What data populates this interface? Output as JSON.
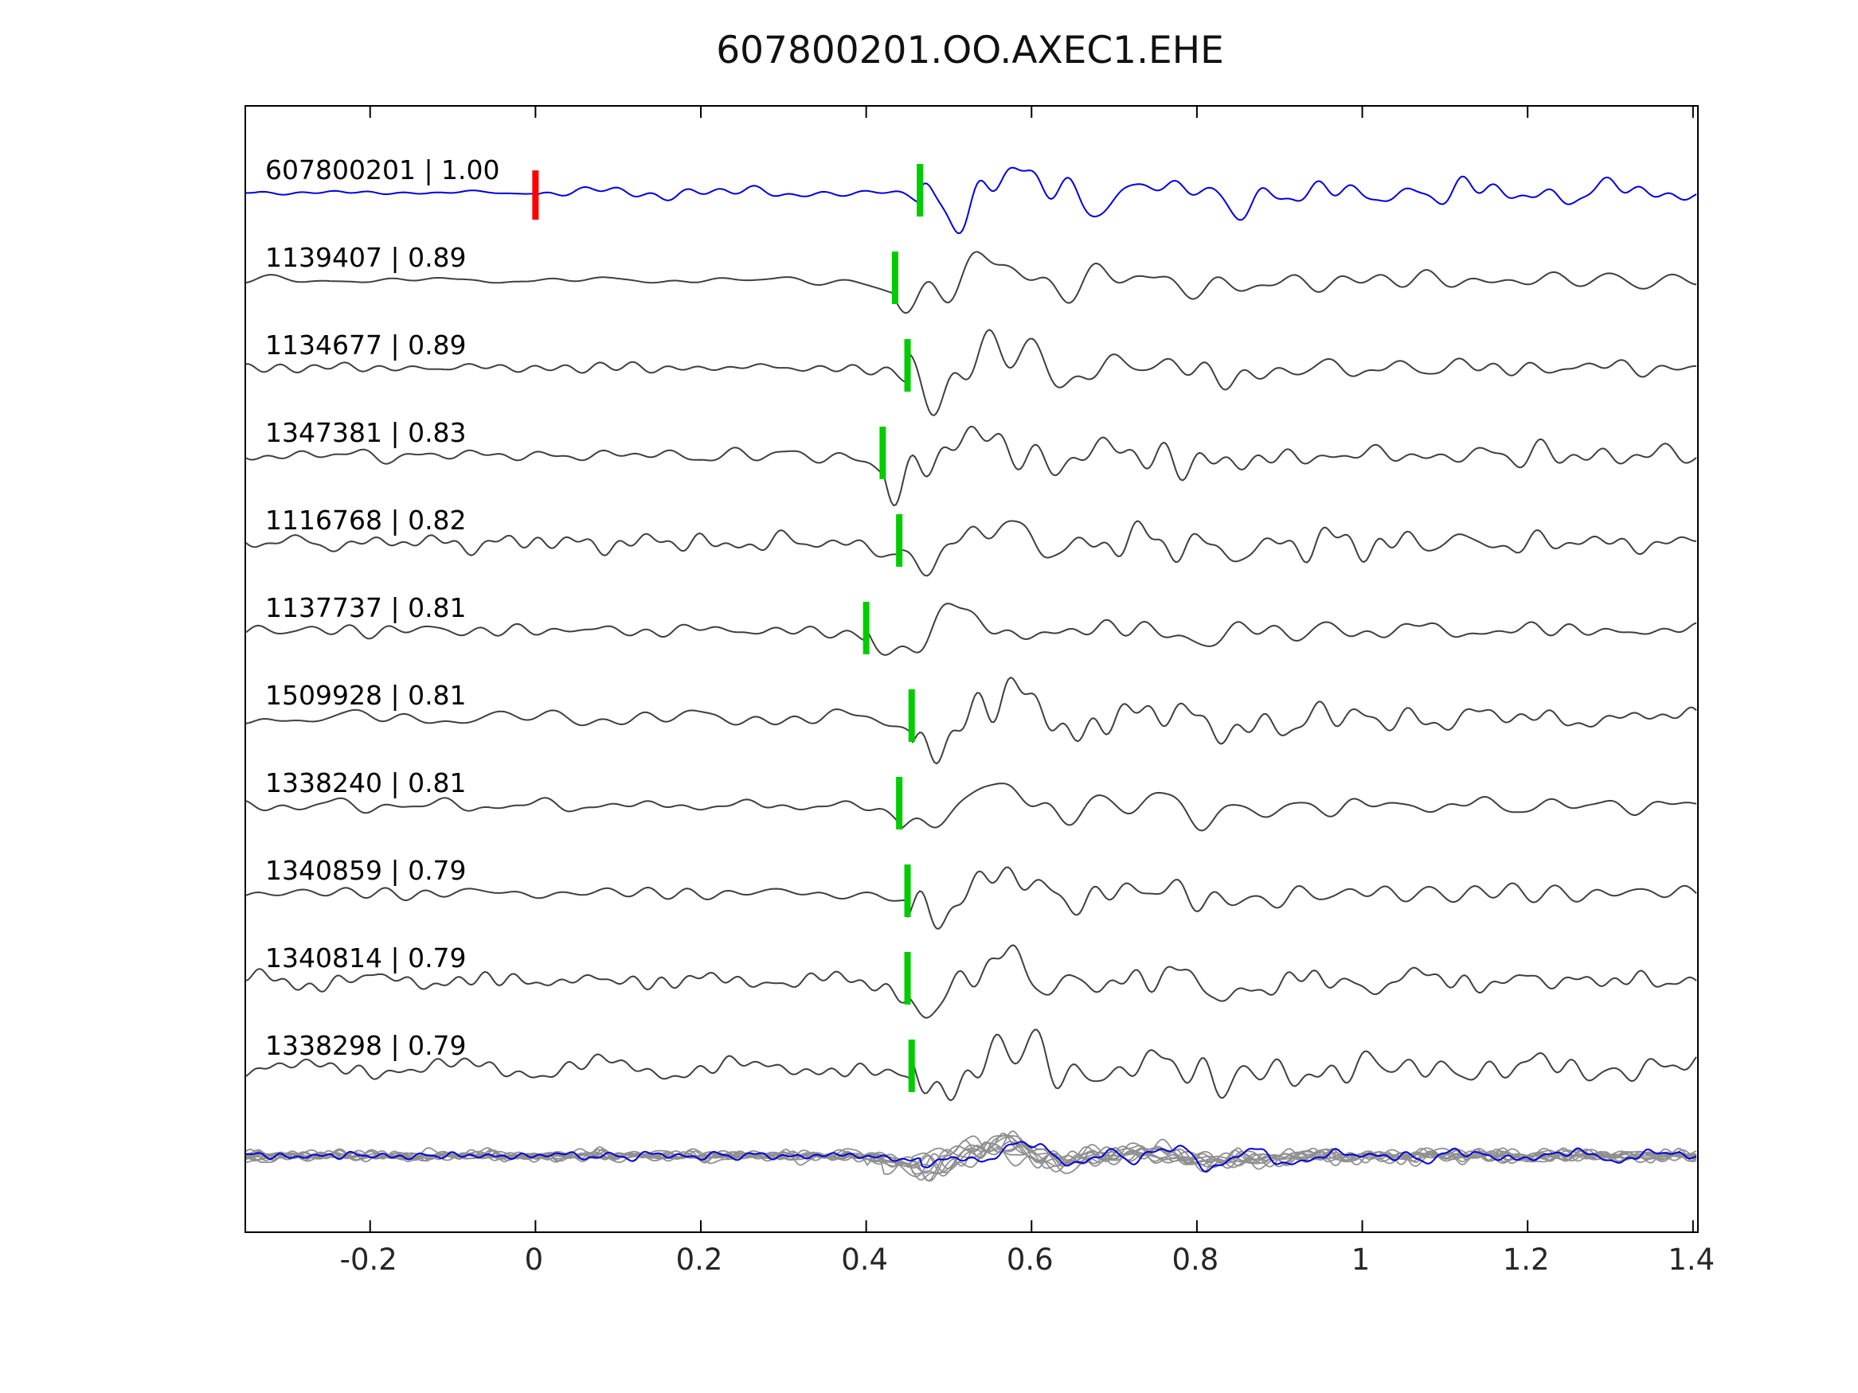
{
  "chart_data": {
    "type": "line",
    "title": "607800201.OO.AXEC1.EHE",
    "xlabel": "",
    "ylabel": "",
    "xlim": [
      -0.35,
      1.405
    ],
    "grid": false,
    "legend": "none",
    "xticks": [
      -0.2,
      0,
      0.2,
      0.4,
      0.6,
      0.8,
      1,
      1.2,
      1.4
    ],
    "xtick_labels": [
      "-0.2",
      "0",
      "0.2",
      "0.4",
      "0.6",
      "0.8",
      "1",
      "1.2",
      "1.4"
    ],
    "colors": {
      "template_trace": "#0000dd",
      "match_trace": "#3f3f3f",
      "overlay_trace": "#909090",
      "pick_marker": "#00cc00",
      "reference_marker": "#ff0000"
    },
    "traces": [
      {
        "label": "607800201 | 1.00",
        "id": "607800201",
        "correlation": 1.0,
        "pick_time": 0.465,
        "reference_time": 0.0,
        "is_template": true
      },
      {
        "label": "1139407 | 0.89",
        "id": "1139407",
        "correlation": 0.89,
        "pick_time": 0.435
      },
      {
        "label": "1134677 | 0.89",
        "id": "1134677",
        "correlation": 0.89,
        "pick_time": 0.45
      },
      {
        "label": "1347381 | 0.83",
        "id": "1347381",
        "correlation": 0.83,
        "pick_time": 0.42
      },
      {
        "label": "1116768 | 0.82",
        "id": "1116768",
        "correlation": 0.82,
        "pick_time": 0.44
      },
      {
        "label": "1137737 | 0.81",
        "id": "1137737",
        "correlation": 0.81,
        "pick_time": 0.4
      },
      {
        "label": "1509928 | 0.81",
        "id": "1509928",
        "correlation": 0.81,
        "pick_time": 0.455
      },
      {
        "label": "1338240 | 0.81",
        "id": "1338240",
        "correlation": 0.81,
        "pick_time": 0.44
      },
      {
        "label": "1340859 | 0.79",
        "id": "1340859",
        "correlation": 0.79,
        "pick_time": 0.45
      },
      {
        "label": "1340814 | 0.79",
        "id": "1340814",
        "correlation": 0.79,
        "pick_time": 0.45
      },
      {
        "label": "1338298 | 0.79",
        "id": "1338298",
        "correlation": 0.79,
        "pick_time": 0.455
      }
    ],
    "bottom_overlay": {
      "description": "all matched traces overlaid with template",
      "trace_count": 11
    }
  }
}
